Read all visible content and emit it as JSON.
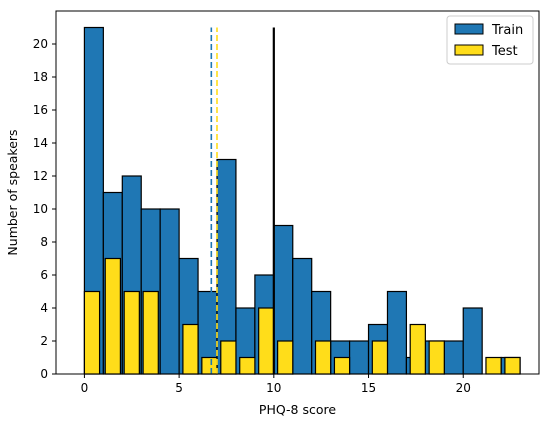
{
  "chart_data": {
    "type": "bar",
    "xlabel": "PHQ-8 score",
    "ylabel": "Number of speakers",
    "xlim": [
      -1.5,
      24
    ],
    "ylim": [
      0,
      22
    ],
    "xticks": [
      0,
      5,
      10,
      15,
      20
    ],
    "yticks": [
      0,
      2,
      4,
      6,
      8,
      10,
      12,
      14,
      16,
      18,
      20
    ],
    "grid": false,
    "legend_position": "top-right",
    "series": [
      {
        "name": "Train",
        "color": "#1f77b4",
        "style": "histogram",
        "bins": [
          {
            "x0": 0,
            "x1": 1,
            "count": 21
          },
          {
            "x0": 1,
            "x1": 2,
            "count": 11
          },
          {
            "x0": 2,
            "x1": 3,
            "count": 12
          },
          {
            "x0": 3,
            "x1": 4,
            "count": 10
          },
          {
            "x0": 4,
            "x1": 5,
            "count": 10
          },
          {
            "x0": 5,
            "x1": 6,
            "count": 7
          },
          {
            "x0": 6,
            "x1": 7,
            "count": 5
          },
          {
            "x0": 7,
            "x1": 8,
            "count": 13
          },
          {
            "x0": 8,
            "x1": 9,
            "count": 4
          },
          {
            "x0": 9,
            "x1": 10,
            "count": 6
          },
          {
            "x0": 10,
            "x1": 11,
            "count": 9
          },
          {
            "x0": 11,
            "x1": 12,
            "count": 7
          },
          {
            "x0": 12,
            "x1": 13,
            "count": 5
          },
          {
            "x0": 13,
            "x1": 14,
            "count": 2
          },
          {
            "x0": 14,
            "x1": 15,
            "count": 2
          },
          {
            "x0": 15,
            "x1": 16,
            "count": 3
          },
          {
            "x0": 16,
            "x1": 17,
            "count": 5
          },
          {
            "x0": 17,
            "x1": 18,
            "count": 1
          },
          {
            "x0": 18,
            "x1": 19,
            "count": 2
          },
          {
            "x0": 19,
            "x1": 20,
            "count": 2
          },
          {
            "x0": 20,
            "x1": 21,
            "count": 4
          },
          {
            "x0": 21,
            "x1": 22,
            "count": 0
          },
          {
            "x0": 22,
            "x1": 23,
            "count": 1
          }
        ]
      },
      {
        "name": "Test",
        "color": "#ffdd1a",
        "style": "histogram",
        "bins": [
          {
            "x0": 0,
            "x1": 0.8,
            "count": 5
          },
          {
            "x0": 1.1,
            "x1": 1.9,
            "count": 7
          },
          {
            "x0": 2.1,
            "x1": 2.9,
            "count": 5
          },
          {
            "x0": 3.1,
            "x1": 3.9,
            "count": 5
          },
          {
            "x0": 5.2,
            "x1": 6.0,
            "count": 3
          },
          {
            "x0": 6.2,
            "x1": 7.0,
            "count": 1
          },
          {
            "x0": 7.2,
            "x1": 8.0,
            "count": 2
          },
          {
            "x0": 8.2,
            "x1": 9.0,
            "count": 1
          },
          {
            "x0": 9.2,
            "x1": 10.0,
            "count": 4
          },
          {
            "x0": 10.2,
            "x1": 11.0,
            "count": 2
          },
          {
            "x0": 12.2,
            "x1": 13.0,
            "count": 2
          },
          {
            "x0": 13.2,
            "x1": 14.0,
            "count": 1
          },
          {
            "x0": 15.2,
            "x1": 16.0,
            "count": 2
          },
          {
            "x0": 17.2,
            "x1": 18.0,
            "count": 3
          },
          {
            "x0": 18.2,
            "x1": 19.0,
            "count": 2
          },
          {
            "x0": 21.2,
            "x1": 22.0,
            "count": 1
          },
          {
            "x0": 22.2,
            "x1": 23.0,
            "count": 1
          }
        ]
      }
    ],
    "reference_lines": [
      {
        "x": 6.7,
        "color": "#1f77b4",
        "style": "dashed",
        "y_top": 21
      },
      {
        "x": 7.0,
        "color": "#ffdd1a",
        "style": "dashed",
        "y_top": 21
      },
      {
        "x": 10,
        "color": "#000000",
        "style": "solid",
        "y_top": 21
      }
    ]
  }
}
